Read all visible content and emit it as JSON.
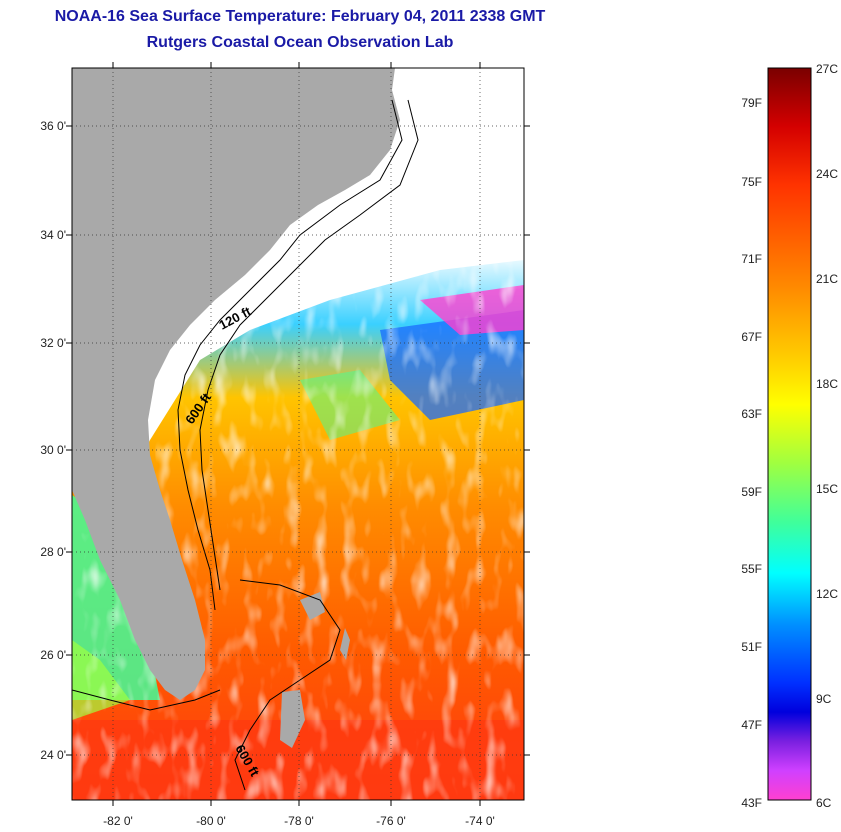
{
  "title": {
    "line1": "NOAA-16 Sea Surface Temperature:  February 04, 2011 2338 GMT",
    "line2": "Rutgers Coastal Ocean Observation Lab"
  },
  "map": {
    "lat_labels": [
      "36 0'",
      "34 0'",
      "32 0'",
      "30 0'",
      "28 0'",
      "26 0'",
      "24 0'"
    ],
    "lat_values": [
      36,
      34,
      32,
      30,
      28,
      26,
      24
    ],
    "lon_labels": [
      "-82 0'",
      "-80 0'",
      "-78 0'",
      "-76 0'",
      "-74 0'"
    ],
    "lon_values": [
      -82,
      -80,
      -78,
      -76,
      -74
    ],
    "lon_range": [
      -83.0,
      -74.6
    ],
    "lat_range": [
      23.0,
      37.0
    ],
    "contour_labels": [
      "120 ft",
      "600 ft",
      "600 ft"
    ],
    "land_color": "#a9a9a9",
    "cloud_color": "#ffffff"
  },
  "colorbar": {
    "fahrenheit_labels": [
      "79F",
      "75F",
      "71F",
      "67F",
      "63F",
      "59F",
      "55F",
      "51F",
      "47F",
      "43F"
    ],
    "celsius_labels": [
      "27C",
      "24C",
      "21C",
      "18C",
      "15C",
      "12C",
      "9C",
      "6C"
    ],
    "stops": [
      "#7a0000",
      "#d40000",
      "#ff3300",
      "#ff8a00",
      "#ffd000",
      "#ffff00",
      "#a0ff40",
      "#40ff9a",
      "#00ffff",
      "#0090ff",
      "#0030ff",
      "#0000dd",
      "#7a20e0",
      "#d040ff",
      "#ff40d0"
    ]
  }
}
